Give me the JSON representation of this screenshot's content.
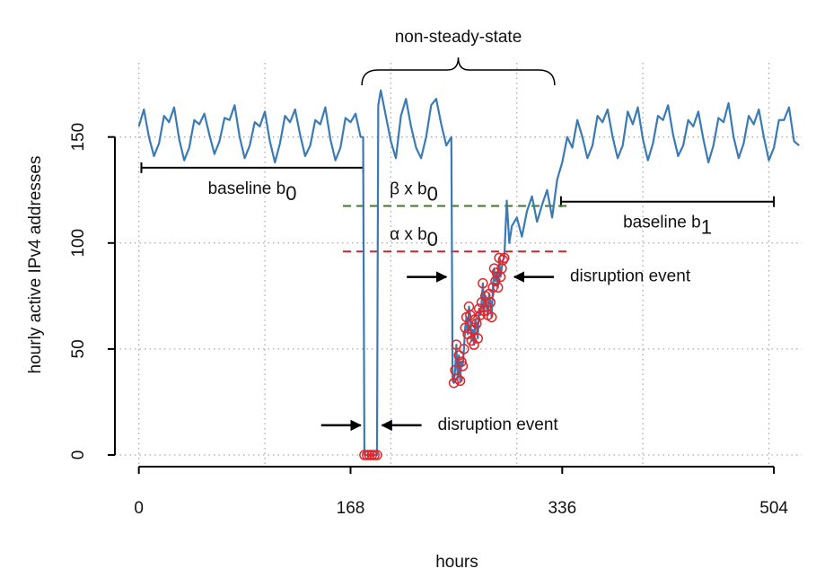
{
  "chart_data": {
    "type": "line",
    "xlabel": "hours",
    "ylabel": "hourly active IPv4 addresses",
    "xlim": [
      -19,
      526
    ],
    "ylim": [
      -5.5,
      185
    ],
    "xticks": [
      0,
      168,
      336,
      504
    ],
    "yticks": [
      0,
      50,
      100,
      150
    ],
    "xgrid": [
      0,
      100,
      200,
      300,
      400,
      500
    ],
    "grid": true,
    "line": {
      "color": "#3b7bb5",
      "x": [
        0,
        4,
        8,
        12,
        16,
        20,
        24,
        28,
        32,
        36,
        40,
        44,
        48,
        52,
        56,
        60,
        64,
        68,
        72,
        76,
        80,
        84,
        88,
        92,
        96,
        100,
        104,
        108,
        112,
        116,
        120,
        124,
        128,
        132,
        136,
        140,
        144,
        148,
        152,
        156,
        160,
        164,
        168,
        172,
        176,
        178,
        179,
        181,
        183,
        185,
        187,
        189,
        190,
        192,
        196,
        200,
        204,
        208,
        212,
        216,
        220,
        224,
        228,
        232,
        236,
        240,
        244,
        248,
        249,
        250,
        251,
        252,
        253,
        254,
        255,
        256,
        257,
        258,
        259,
        260,
        261,
        262,
        263,
        264,
        265,
        266,
        267,
        268,
        269,
        270,
        271,
        272,
        273,
        274,
        275,
        276,
        277,
        278,
        279,
        280,
        281,
        282,
        283,
        284,
        285,
        286,
        287,
        288,
        289,
        290,
        292,
        294,
        296,
        300,
        304,
        308,
        312,
        316,
        320,
        324,
        328,
        332,
        336,
        340,
        344,
        348,
        352,
        356,
        360,
        364,
        368,
        372,
        376,
        380,
        384,
        388,
        392,
        396,
        400,
        404,
        408,
        412,
        416,
        420,
        424,
        428,
        432,
        436,
        440,
        444,
        448,
        452,
        456,
        460,
        464,
        468,
        472,
        476,
        480,
        484,
        488,
        492,
        496,
        500,
        504,
        508,
        512,
        516,
        520,
        524
      ],
      "values": [
        155,
        163,
        150,
        141,
        147,
        160,
        157,
        164,
        149,
        139,
        145,
        158,
        156,
        161,
        151,
        142,
        148,
        159,
        158,
        165,
        150,
        140,
        146,
        157,
        155,
        162,
        148,
        138,
        147,
        160,
        157,
        163,
        151,
        141,
        146,
        158,
        156,
        164,
        149,
        139,
        145,
        159,
        157,
        161,
        150,
        150,
        0,
        0,
        0,
        0,
        0,
        0,
        165,
        172,
        160,
        148,
        140,
        160,
        168,
        155,
        145,
        140,
        150,
        165,
        168,
        156,
        146,
        150,
        35,
        34,
        40,
        52,
        36,
        47,
        35,
        44,
        42,
        50,
        60,
        65,
        57,
        70,
        66,
        54,
        59,
        52,
        64,
        62,
        55,
        69,
        66,
        72,
        81,
        68,
        75,
        70,
        66,
        76,
        72,
        65,
        79,
        88,
        82,
        86,
        79,
        93,
        84,
        88,
        92,
        93,
        120,
        100,
        108,
        112,
        103,
        115,
        122,
        110,
        118,
        125,
        112,
        130,
        138,
        150,
        145,
        158,
        150,
        140,
        146,
        160,
        157,
        163,
        150,
        140,
        146,
        162,
        156,
        164,
        149,
        139,
        147,
        160,
        158,
        165,
        151,
        141,
        146,
        158,
        155,
        162,
        149,
        138,
        146,
        159,
        157,
        166,
        150,
        140,
        147,
        160,
        156,
        163,
        150,
        139,
        145,
        158,
        158,
        164,
        148,
        146
      ]
    },
    "points": {
      "color": "#e0262a",
      "x": [
        179,
        181,
        183,
        185,
        187,
        189,
        250,
        251,
        252,
        253,
        254,
        255,
        256,
        257,
        258,
        259,
        260,
        261,
        262,
        263,
        264,
        265,
        266,
        267,
        268,
        269,
        270,
        271,
        272,
        273,
        274,
        275,
        276,
        277,
        278,
        279,
        280,
        281,
        282,
        283,
        284,
        285,
        286,
        287,
        288,
        289,
        290
      ],
      "values": [
        0,
        0,
        0,
        0,
        0,
        0,
        34,
        40,
        52,
        36,
        47,
        35,
        44,
        42,
        50,
        60,
        65,
        57,
        70,
        66,
        54,
        59,
        52,
        64,
        62,
        55,
        69,
        66,
        72,
        81,
        68,
        75,
        70,
        66,
        76,
        72,
        65,
        79,
        88,
        82,
        86,
        79,
        93,
        84,
        88,
        92,
        93
      ]
    },
    "annotations": {
      "baseline_b0": {
        "label": "baseline b",
        "sub": "0",
        "y": 135.5,
        "x": [
          2,
          178
        ]
      },
      "baseline_b1": {
        "label": "baseline b",
        "sub": "1",
        "y": 119.5,
        "x": [
          335,
          504
        ]
      },
      "beta_line": {
        "label": "β x b",
        "sub": "0",
        "y": 117.5,
        "x": [
          162,
          342
        ],
        "color": "#3d7a22"
      },
      "alpha_line": {
        "label": "α x b",
        "sub": "0",
        "y": 96,
        "x": [
          162,
          342
        ],
        "color": "#c0282f"
      },
      "non_steady_state": {
        "label": "non-steady-state",
        "x": [
          177,
          330
        ]
      },
      "disruption_events": [
        {
          "label": "disruption event",
          "y": 14,
          "x": [
            176,
            193
          ]
        },
        {
          "label": "disruption event",
          "y": 84,
          "x": [
            244,
            298
          ]
        }
      ]
    }
  }
}
